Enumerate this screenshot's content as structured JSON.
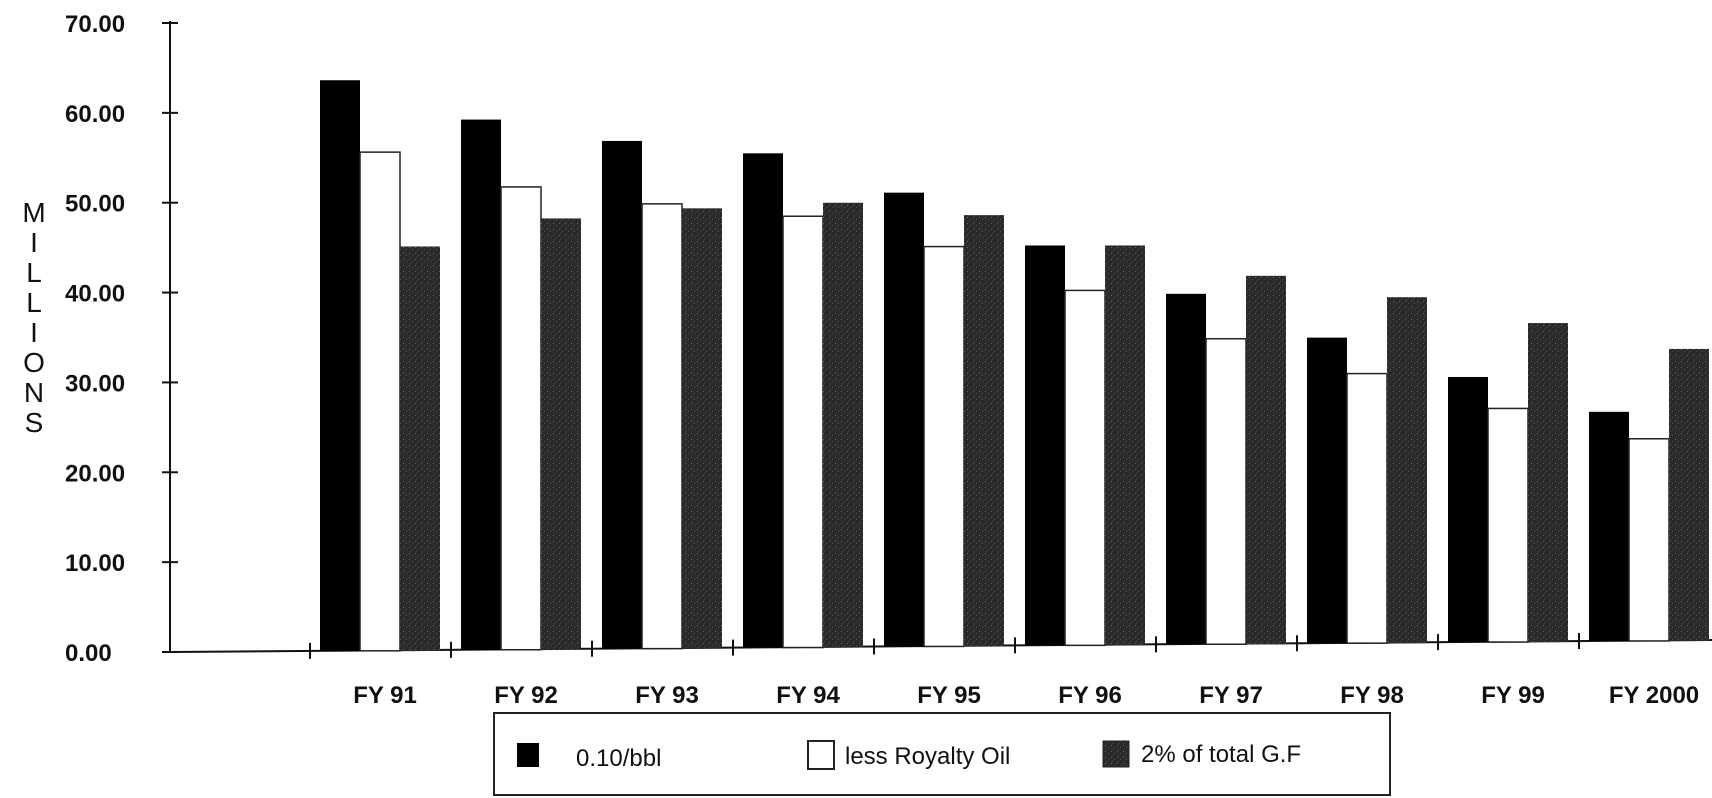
{
  "chart_data": {
    "type": "bar",
    "title": "",
    "xlabel": "",
    "ylabel": "MILLIONS",
    "ylim": [
      0,
      70
    ],
    "yticks": [
      "0.00",
      "10.00",
      "20.00",
      "30.00",
      "40.00",
      "50.00",
      "60.00",
      "70.00"
    ],
    "grid": false,
    "legend_position": "bottom",
    "categories": [
      "FY 91",
      "FY 92",
      "FY 93",
      "FY 94",
      "FY 95",
      "FY 96",
      "FY 97",
      "FY 98",
      "FY 99",
      "FY 2000"
    ],
    "series": [
      {
        "name": "0.10/bbl",
        "color": "#000000",
        "values": [
          63.5,
          59.0,
          56.5,
          55.0,
          50.5,
          44.5,
          39.0,
          34.0,
          29.5,
          25.5
        ]
      },
      {
        "name": "less Royalty Oil",
        "color": "#ffffff",
        "values": [
          55.5,
          51.5,
          49.5,
          48.0,
          44.5,
          39.5,
          34.0,
          30.0,
          26.0,
          22.5
        ]
      },
      {
        "name": "2% of total G.F",
        "color": "#2a2a2a",
        "values": [
          45.0,
          48.0,
          49.0,
          49.5,
          48.0,
          44.5,
          41.0,
          38.5,
          35.5,
          32.5
        ]
      }
    ]
  }
}
